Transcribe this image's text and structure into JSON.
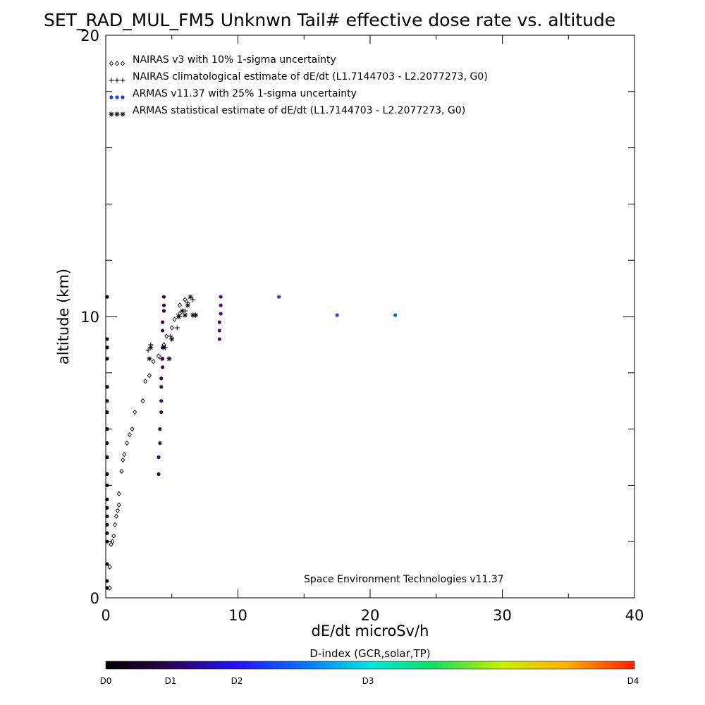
{
  "chart_data": {
    "type": "scatter",
    "title": "SET_RAD_MUL_FM5 Unknwn Tail#  effective dose rate vs. altitude",
    "xlabel": "dE/dt microSv/h",
    "ylabel": "altitude (km)",
    "xlim": [
      0,
      40
    ],
    "ylim": [
      0,
      20
    ],
    "x_ticks": [
      "0",
      "10",
      "20",
      "30",
      "40"
    ],
    "y_ticks": [
      "0",
      "10",
      "20"
    ],
    "legend_position": "top-left",
    "annotation": "Space Environment Technologies v11.37",
    "colorbar": {
      "title": "D-index (GCR,solar,TP)",
      "labels": [
        "D0",
        "D1",
        "D2",
        "D3",
        "D4"
      ]
    },
    "series": [
      {
        "name": "NAIRAS v3 with 10% 1-sigma uncertainty",
        "marker": "diamond",
        "color": "#000000",
        "points": [
          [
            0.3,
            0.35
          ],
          [
            0.3,
            1.1
          ],
          [
            0.4,
            1.9
          ],
          [
            0.5,
            2.0
          ],
          [
            0.6,
            2.2
          ],
          [
            0.7,
            2.6
          ],
          [
            0.8,
            2.9
          ],
          [
            0.9,
            3.1
          ],
          [
            1.0,
            3.3
          ],
          [
            1.0,
            3.7
          ],
          [
            1.2,
            4.5
          ],
          [
            1.3,
            4.9
          ],
          [
            1.4,
            5.1
          ],
          [
            1.6,
            5.5
          ],
          [
            1.8,
            5.8
          ],
          [
            2.0,
            6.0
          ],
          [
            2.2,
            6.6
          ],
          [
            2.8,
            7.0
          ],
          [
            3.0,
            7.7
          ],
          [
            3.3,
            7.9
          ],
          [
            3.6,
            8.4
          ],
          [
            4.0,
            8.6
          ],
          [
            4.4,
            9.0
          ],
          [
            4.6,
            9.3
          ],
          [
            5.0,
            9.6
          ],
          [
            5.2,
            9.9
          ],
          [
            5.6,
            10.1
          ],
          [
            5.6,
            10.4
          ],
          [
            6.0,
            10.6
          ]
        ]
      },
      {
        "name": "NAIRAS climatological estimate of dE/dt (L1.7144703 - L2.2077273, G0)",
        "marker": "plus",
        "color": "#000000",
        "points": [
          [
            3.2,
            8.8
          ],
          [
            3.4,
            9.0
          ],
          [
            4.2,
            8.5
          ],
          [
            4.5,
            8.9
          ],
          [
            4.9,
            9.3
          ],
          [
            5.4,
            9.6
          ],
          [
            5.6,
            10.0
          ],
          [
            6.0,
            10.2
          ],
          [
            6.2,
            10.5
          ],
          [
            6.6,
            10.6
          ]
        ]
      },
      {
        "name": "ARMAS v11.37 with 25% 1-sigma uncertainty",
        "marker": "dot",
        "color": "#1a3fd6",
        "points": [
          {
            "x": 0.1,
            "y": 0.35,
            "c": "#000000"
          },
          {
            "x": 0.1,
            "y": 0.6,
            "c": "#000000"
          },
          {
            "x": 0.1,
            "y": 1.2,
            "c": "#000000"
          },
          {
            "x": 0.1,
            "y": 2.0,
            "c": "#000000"
          },
          {
            "x": 0.1,
            "y": 2.3,
            "c": "#000000"
          },
          {
            "x": 0.1,
            "y": 2.6,
            "c": "#000000"
          },
          {
            "x": 0.1,
            "y": 2.9,
            "c": "#000000"
          },
          {
            "x": 0.1,
            "y": 3.2,
            "c": "#000000"
          },
          {
            "x": 0.1,
            "y": 3.5,
            "c": "#000000"
          },
          {
            "x": 0.1,
            "y": 4.0,
            "c": "#000000"
          },
          {
            "x": 0.1,
            "y": 4.4,
            "c": "#000000"
          },
          {
            "x": 0.1,
            "y": 5.0,
            "c": "#000000"
          },
          {
            "x": 0.1,
            "y": 5.5,
            "c": "#000000"
          },
          {
            "x": 0.1,
            "y": 6.0,
            "c": "#000000"
          },
          {
            "x": 0.1,
            "y": 6.6,
            "c": "#000000"
          },
          {
            "x": 0.1,
            "y": 7.0,
            "c": "#000000"
          },
          {
            "x": 0.1,
            "y": 7.5,
            "c": "#000000"
          },
          {
            "x": 0.1,
            "y": 8.5,
            "c": "#000000"
          },
          {
            "x": 0.1,
            "y": 8.9,
            "c": "#000000"
          },
          {
            "x": 0.1,
            "y": 9.2,
            "c": "#000000"
          },
          {
            "x": 0.1,
            "y": 10.7,
            "c": "#000000"
          },
          {
            "x": 4.0,
            "y": 4.4,
            "c": "#3a0a4a"
          },
          {
            "x": 4.0,
            "y": 5.0,
            "c": "#3a0a4a"
          },
          {
            "x": 4.1,
            "y": 5.5,
            "c": "#3a0a4a"
          },
          {
            "x": 4.1,
            "y": 6.0,
            "c": "#3a0a4a"
          },
          {
            "x": 4.2,
            "y": 6.6,
            "c": "#3a0a4a"
          },
          {
            "x": 4.2,
            "y": 7.0,
            "c": "#3a0a4a"
          },
          {
            "x": 4.2,
            "y": 7.5,
            "c": "#3a0a4a"
          },
          {
            "x": 4.2,
            "y": 7.8,
            "c": "#3a0a4a"
          },
          {
            "x": 4.3,
            "y": 8.2,
            "c": "#3a0a4a"
          },
          {
            "x": 4.3,
            "y": 8.5,
            "c": "#3a0a4a"
          },
          {
            "x": 4.3,
            "y": 8.9,
            "c": "#3a0a4a"
          },
          {
            "x": 4.3,
            "y": 9.5,
            "c": "#3a0a4a"
          },
          {
            "x": 4.3,
            "y": 9.8,
            "c": "#3a0a4a"
          },
          {
            "x": 4.4,
            "y": 10.2,
            "c": "#3a0a4a"
          },
          {
            "x": 4.4,
            "y": 10.4,
            "c": "#3a0a4a"
          },
          {
            "x": 4.4,
            "y": 10.7,
            "c": "#3a0a4a"
          },
          {
            "x": 8.6,
            "y": 9.2,
            "c": "#4b0f6e"
          },
          {
            "x": 8.6,
            "y": 9.5,
            "c": "#4b0f6e"
          },
          {
            "x": 8.6,
            "y": 9.8,
            "c": "#4b0f6e"
          },
          {
            "x": 8.7,
            "y": 10.1,
            "c": "#4b0f6e"
          },
          {
            "x": 8.7,
            "y": 10.4,
            "c": "#4b0f6e"
          },
          {
            "x": 8.7,
            "y": 10.7,
            "c": "#4b0f6e"
          },
          {
            "x": 13.1,
            "y": 10.7,
            "c": "#2b3ad8"
          },
          {
            "x": 17.5,
            "y": 10.05,
            "c": "#1f48e8"
          },
          {
            "x": 21.9,
            "y": 10.05,
            "c": "#0a66ea"
          }
        ]
      },
      {
        "name": "ARMAS statistical estimate of dE/dt (L1.7144703 - L2.2077273, G0)",
        "marker": "asterisk",
        "color": "#000000",
        "points": [
          [
            3.3,
            8.5
          ],
          [
            3.4,
            8.9
          ],
          [
            4.4,
            8.9
          ],
          [
            4.8,
            8.5
          ],
          [
            5.0,
            9.2
          ],
          [
            5.5,
            10.0
          ],
          [
            5.8,
            10.2
          ],
          [
            6.0,
            10.05
          ],
          [
            6.2,
            10.4
          ],
          [
            6.4,
            10.7
          ],
          [
            6.6,
            10.05
          ],
          [
            6.8,
            10.05
          ]
        ]
      }
    ]
  }
}
